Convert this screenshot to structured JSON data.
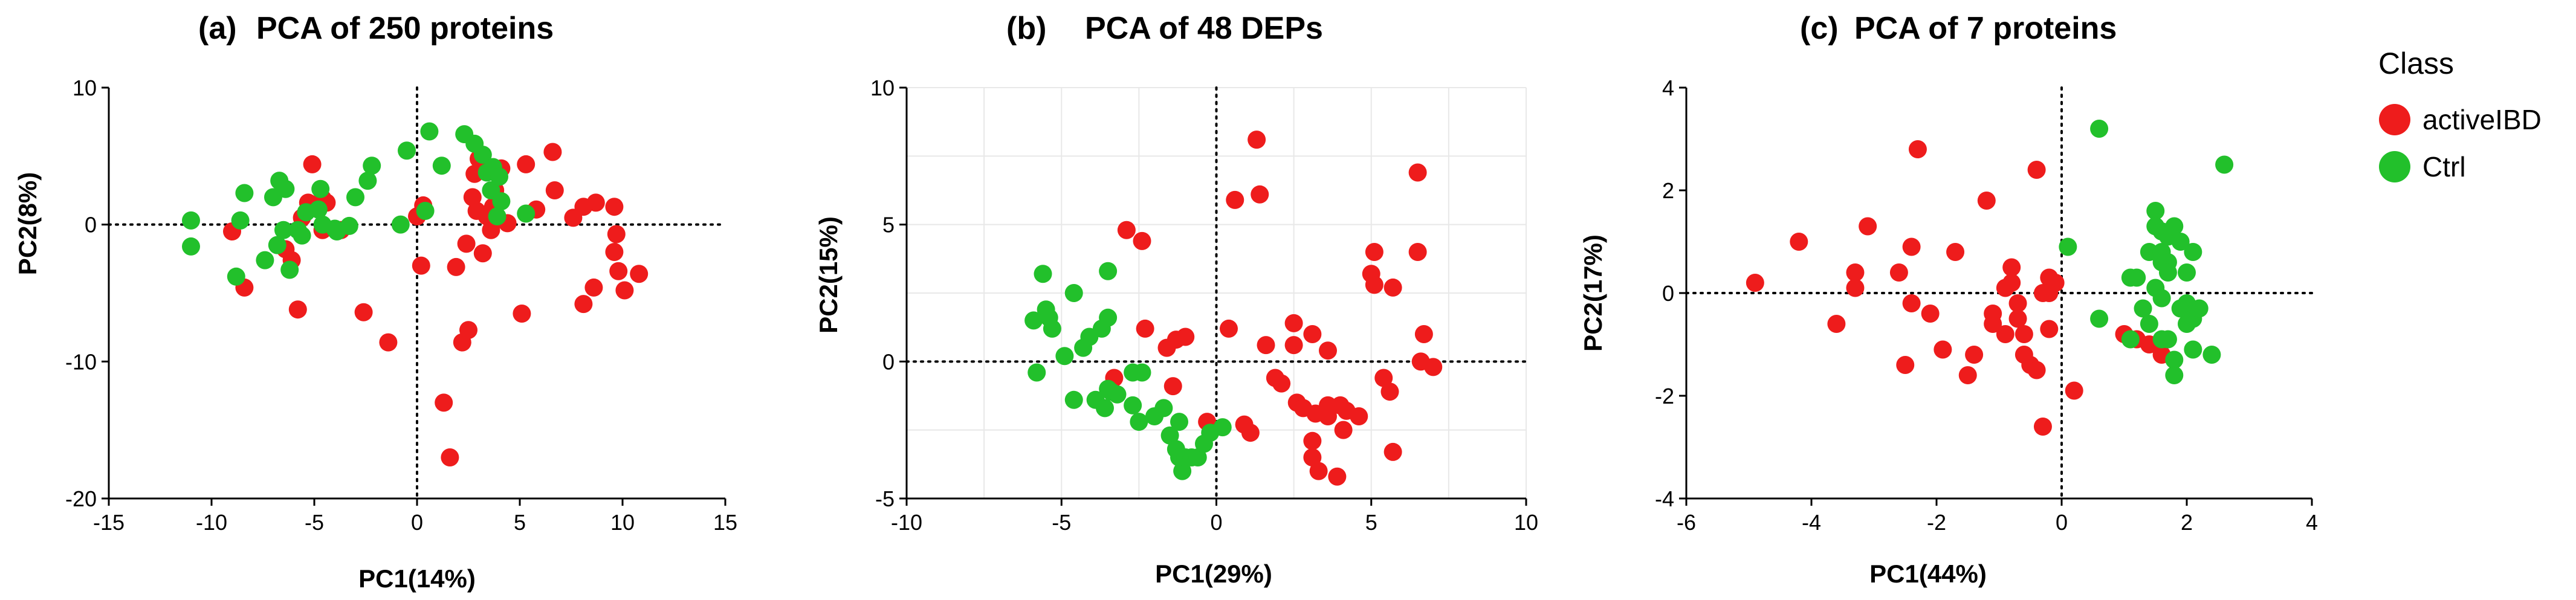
{
  "legend": {
    "title": "Class",
    "items": [
      {
        "label": "activeIBD",
        "color": "#ee1c1c"
      },
      {
        "label": "Ctrl",
        "color": "#22c02b"
      }
    ]
  },
  "colors": {
    "activeIBD": "#ee1c1c",
    "Ctrl": "#22c02b",
    "axis": "#000000",
    "grid": "#e8e8e8"
  },
  "chart_data": [
    {
      "type": "scatter",
      "prefix": "(a)",
      "title": "PCA of 250 proteins",
      "xlabel": "PC1(14%)",
      "ylabel": "PC2(8%)",
      "xlim": [
        -15,
        15
      ],
      "ylim": [
        -20,
        10
      ],
      "xticks": [
        -15,
        -10,
        -5,
        0,
        5,
        10,
        15
      ],
      "yticks": [
        -20,
        -10,
        0,
        10
      ],
      "grid": false,
      "series": [
        {
          "name": "activeIBD",
          "color": "#ee1c1c",
          "points": [
            [
              -9,
              -0.5
            ],
            [
              -8.4,
              -4.6
            ],
            [
              -6.4,
              -1.8
            ],
            [
              -6.1,
              -2.6
            ],
            [
              -5.8,
              -6.2
            ],
            [
              -5.6,
              0.5
            ],
            [
              -5.3,
              1.6
            ],
            [
              -5.1,
              4.4
            ],
            [
              -4.6,
              1.9
            ],
            [
              -4.4,
              1.6
            ],
            [
              -4.6,
              -0.4
            ],
            [
              -3.7,
              -0.4
            ],
            [
              -2.6,
              -6.4
            ],
            [
              -1.4,
              -8.6
            ],
            [
              0.0,
              0.6
            ],
            [
              0.3,
              1.4
            ],
            [
              0.2,
              -3.0
            ],
            [
              1.3,
              -13.0
            ],
            [
              1.6,
              -17.0
            ],
            [
              1.9,
              -3.1
            ],
            [
              2.2,
              -8.6
            ],
            [
              2.5,
              -7.7
            ],
            [
              2.4,
              -1.4
            ],
            [
              2.7,
              2.0
            ],
            [
              2.8,
              3.7
            ],
            [
              2.9,
              1.0
            ],
            [
              3.0,
              4.8
            ],
            [
              3.2,
              -2.1
            ],
            [
              3.4,
              0.6
            ],
            [
              3.3,
              4.0
            ],
            [
              3.6,
              -0.4
            ],
            [
              3.8,
              2.5
            ],
            [
              3.7,
              1.3
            ],
            [
              4.1,
              4.1
            ],
            [
              4.4,
              0.1
            ],
            [
              5.1,
              -6.5
            ],
            [
              5.3,
              4.4
            ],
            [
              5.8,
              1.1
            ],
            [
              6.6,
              5.3
            ],
            [
              6.7,
              2.5
            ],
            [
              7.6,
              0.5
            ],
            [
              8.1,
              -5.8
            ],
            [
              8.1,
              1.3
            ],
            [
              8.6,
              -4.6
            ],
            [
              8.7,
              1.6
            ],
            [
              9.6,
              1.3
            ],
            [
              9.6,
              -2.0
            ],
            [
              9.7,
              -0.7
            ],
            [
              9.8,
              -3.4
            ],
            [
              10.1,
              -4.8
            ],
            [
              10.8,
              -3.6
            ]
          ]
        },
        {
          "name": "Ctrl",
          "color": "#22c02b",
          "points": [
            [
              -11.0,
              0.3
            ],
            [
              -11.0,
              -1.6
            ],
            [
              -8.8,
              -3.8
            ],
            [
              -8.6,
              0.3
            ],
            [
              -8.4,
              2.3
            ],
            [
              -7.4,
              -2.6
            ],
            [
              -7.0,
              2.0
            ],
            [
              -6.8,
              -1.5
            ],
            [
              -6.7,
              3.2
            ],
            [
              -6.5,
              -0.4
            ],
            [
              -6.4,
              2.6
            ],
            [
              -6.2,
              -3.3
            ],
            [
              -5.8,
              -0.4
            ],
            [
              -5.6,
              -0.8
            ],
            [
              -5.4,
              0.9
            ],
            [
              -4.8,
              1.1
            ],
            [
              -4.7,
              2.6
            ],
            [
              -4.6,
              0.0
            ],
            [
              -4.0,
              -0.3
            ],
            [
              -3.9,
              -0.5
            ],
            [
              -3.3,
              -0.1
            ],
            [
              -3.0,
              2.0
            ],
            [
              -2.4,
              3.2
            ],
            [
              -2.2,
              4.3
            ],
            [
              -0.8,
              0.0
            ],
            [
              -0.5,
              5.4
            ],
            [
              0.4,
              1.0
            ],
            [
              0.6,
              6.8
            ],
            [
              1.2,
              4.3
            ],
            [
              2.3,
              6.6
            ],
            [
              2.8,
              5.9
            ],
            [
              3.2,
              5.1
            ],
            [
              3.4,
              3.8
            ],
            [
              3.6,
              2.5
            ],
            [
              3.7,
              4.2
            ],
            [
              3.9,
              0.6
            ],
            [
              4.0,
              3.5
            ],
            [
              4.1,
              1.7
            ],
            [
              5.3,
              0.8
            ]
          ]
        }
      ]
    },
    {
      "type": "scatter",
      "prefix": "(b)",
      "title": "PCA of 48 DEPs",
      "xlabel": "PC1(29%)",
      "ylabel": "PC2(15%)",
      "xlim": [
        -10,
        10
      ],
      "ylim": [
        -5,
        10
      ],
      "xticks": [
        -10,
        -5,
        0,
        5,
        10
      ],
      "yticks": [
        -5,
        0,
        5,
        10
      ],
      "grid": true,
      "series": [
        {
          "name": "activeIBD",
          "color": "#ee1c1c",
          "points": [
            [
              -3.3,
              -0.6
            ],
            [
              -2.9,
              4.8
            ],
            [
              -2.4,
              4.4
            ],
            [
              -2.3,
              1.2
            ],
            [
              -1.6,
              0.5
            ],
            [
              -1.4,
              -0.9
            ],
            [
              -1.3,
              0.8
            ],
            [
              -1.0,
              0.9
            ],
            [
              -0.3,
              -2.2
            ],
            [
              0.4,
              1.2
            ],
            [
              0.6,
              5.9
            ],
            [
              0.9,
              -2.3
            ],
            [
              1.1,
              -2.6
            ],
            [
              1.3,
              8.1
            ],
            [
              1.4,
              6.1
            ],
            [
              1.6,
              0.6
            ],
            [
              1.9,
              -0.6
            ],
            [
              2.1,
              -0.8
            ],
            [
              2.5,
              0.6
            ],
            [
              2.5,
              1.4
            ],
            [
              2.6,
              -1.5
            ],
            [
              2.8,
              -1.7
            ],
            [
              3.1,
              1.0
            ],
            [
              3.1,
              -2.9
            ],
            [
              3.1,
              -3.5
            ],
            [
              3.2,
              -1.9
            ],
            [
              3.3,
              -4.0
            ],
            [
              3.6,
              -1.6
            ],
            [
              3.6,
              -2.0
            ],
            [
              3.6,
              0.4
            ],
            [
              3.9,
              -4.2
            ],
            [
              4.0,
              -1.6
            ],
            [
              4.1,
              -2.5
            ],
            [
              4.2,
              -1.8
            ],
            [
              4.6,
              -2.0
            ],
            [
              5.0,
              3.2
            ],
            [
              5.1,
              4.0
            ],
            [
              5.1,
              2.8
            ],
            [
              5.4,
              -0.6
            ],
            [
              5.6,
              -1.1
            ],
            [
              5.7,
              2.7
            ],
            [
              5.7,
              -3.3
            ],
            [
              6.5,
              4.0
            ],
            [
              6.5,
              6.9
            ],
            [
              6.6,
              0.0
            ],
            [
              6.7,
              1.0
            ],
            [
              7.0,
              -0.2
            ]
          ]
        },
        {
          "name": "Ctrl",
          "color": "#22c02b",
          "points": [
            [
              -5.9,
              1.5
            ],
            [
              -5.8,
              -0.4
            ],
            [
              -5.6,
              3.2
            ],
            [
              -5.5,
              1.9
            ],
            [
              -5.4,
              1.6
            ],
            [
              -5.3,
              1.2
            ],
            [
              -4.9,
              0.2
            ],
            [
              -4.6,
              -1.4
            ],
            [
              -4.6,
              2.5
            ],
            [
              -4.3,
              0.5
            ],
            [
              -4.1,
              0.9
            ],
            [
              -3.9,
              -1.4
            ],
            [
              -3.7,
              1.2
            ],
            [
              -3.6,
              -1.7
            ],
            [
              -3.5,
              3.3
            ],
            [
              -3.5,
              1.6
            ],
            [
              -3.5,
              -1.0
            ],
            [
              -3.4,
              -1.1
            ],
            [
              -3.2,
              -1.2
            ],
            [
              -2.7,
              -0.4
            ],
            [
              -2.7,
              -1.6
            ],
            [
              -2.5,
              -2.2
            ],
            [
              -2.4,
              -0.4
            ],
            [
              -2.0,
              -2.0
            ],
            [
              -1.7,
              -1.7
            ],
            [
              -1.5,
              -2.7
            ],
            [
              -1.3,
              -3.2
            ],
            [
              -1.2,
              -3.5
            ],
            [
              -1.2,
              -2.2
            ],
            [
              -1.1,
              -4.0
            ],
            [
              -1.0,
              -3.5
            ],
            [
              -0.8,
              -3.5
            ],
            [
              -0.6,
              -3.5
            ],
            [
              -0.4,
              -3.0
            ],
            [
              -0.2,
              -2.6
            ],
            [
              0.2,
              -2.4
            ]
          ]
        }
      ]
    },
    {
      "type": "scatter",
      "prefix": "(c)",
      "title": "PCA of 7 proteins",
      "xlabel": "PC1(44%)",
      "ylabel": "PC2(17%)",
      "xlim": [
        -6,
        4
      ],
      "ylim": [
        -4,
        4
      ],
      "xticks": [
        -6,
        -4,
        -2,
        0,
        2,
        4
      ],
      "yticks": [
        -4,
        -2,
        0,
        2,
        4
      ],
      "grid": false,
      "series": [
        {
          "name": "activeIBD",
          "color": "#ee1c1c",
          "points": [
            [
              -4.9,
              0.2
            ],
            [
              -4.2,
              1.0
            ],
            [
              -3.6,
              -0.6
            ],
            [
              -3.3,
              0.4
            ],
            [
              -3.3,
              0.1
            ],
            [
              -3.1,
              1.3
            ],
            [
              -2.6,
              0.4
            ],
            [
              -2.5,
              -1.4
            ],
            [
              -2.4,
              0.9
            ],
            [
              -2.4,
              -0.2
            ],
            [
              -2.3,
              2.8
            ],
            [
              -2.1,
              -0.4
            ],
            [
              -1.9,
              -1.1
            ],
            [
              -1.7,
              0.8
            ],
            [
              -1.5,
              -1.6
            ],
            [
              -1.4,
              -1.2
            ],
            [
              -1.2,
              1.8
            ],
            [
              -1.1,
              -0.4
            ],
            [
              -1.1,
              -0.6
            ],
            [
              -0.9,
              0.1
            ],
            [
              -0.9,
              -0.8
            ],
            [
              -0.8,
              0.5
            ],
            [
              -0.8,
              0.2
            ],
            [
              -0.7,
              -0.2
            ],
            [
              -0.7,
              -0.5
            ],
            [
              -0.6,
              -1.2
            ],
            [
              -0.6,
              -0.8
            ],
            [
              -0.5,
              -1.4
            ],
            [
              -0.4,
              2.4
            ],
            [
              -0.4,
              -1.5
            ],
            [
              -0.3,
              0.0
            ],
            [
              -0.3,
              -2.6
            ],
            [
              -0.2,
              0.3
            ],
            [
              -0.2,
              0.0
            ],
            [
              -0.2,
              -0.7
            ],
            [
              -0.1,
              0.2
            ],
            [
              0.2,
              -1.9
            ],
            [
              1.0,
              -0.8
            ],
            [
              1.2,
              -0.9
            ],
            [
              1.4,
              -1.0
            ],
            [
              1.6,
              -1.2
            ]
          ]
        },
        {
          "name": "Ctrl",
          "color": "#22c02b",
          "points": [
            [
              0.1,
              0.9
            ],
            [
              0.6,
              3.2
            ],
            [
              0.6,
              -0.5
            ],
            [
              1.1,
              -0.9
            ],
            [
              1.1,
              0.3
            ],
            [
              1.2,
              0.3
            ],
            [
              1.3,
              -0.3
            ],
            [
              1.4,
              0.8
            ],
            [
              1.4,
              -0.6
            ],
            [
              1.5,
              1.6
            ],
            [
              1.5,
              1.3
            ],
            [
              1.5,
              0.1
            ],
            [
              1.6,
              1.2
            ],
            [
              1.6,
              -0.1
            ],
            [
              1.6,
              -0.9
            ],
            [
              1.6,
              0.6
            ],
            [
              1.6,
              0.8
            ],
            [
              1.7,
              -0.9
            ],
            [
              1.7,
              0.6
            ],
            [
              1.7,
              0.4
            ],
            [
              1.7,
              1.1
            ],
            [
              1.8,
              1.3
            ],
            [
              1.8,
              -1.3
            ],
            [
              1.8,
              -1.6
            ],
            [
              1.9,
              -0.3
            ],
            [
              1.9,
              1.0
            ],
            [
              2.0,
              -0.6
            ],
            [
              2.0,
              0.4
            ],
            [
              2.0,
              -0.2
            ],
            [
              2.1,
              -1.1
            ],
            [
              2.1,
              0.8
            ],
            [
              2.1,
              -0.5
            ],
            [
              2.2,
              -0.3
            ],
            [
              2.4,
              -1.2
            ],
            [
              2.6,
              2.5
            ]
          ]
        }
      ]
    }
  ]
}
